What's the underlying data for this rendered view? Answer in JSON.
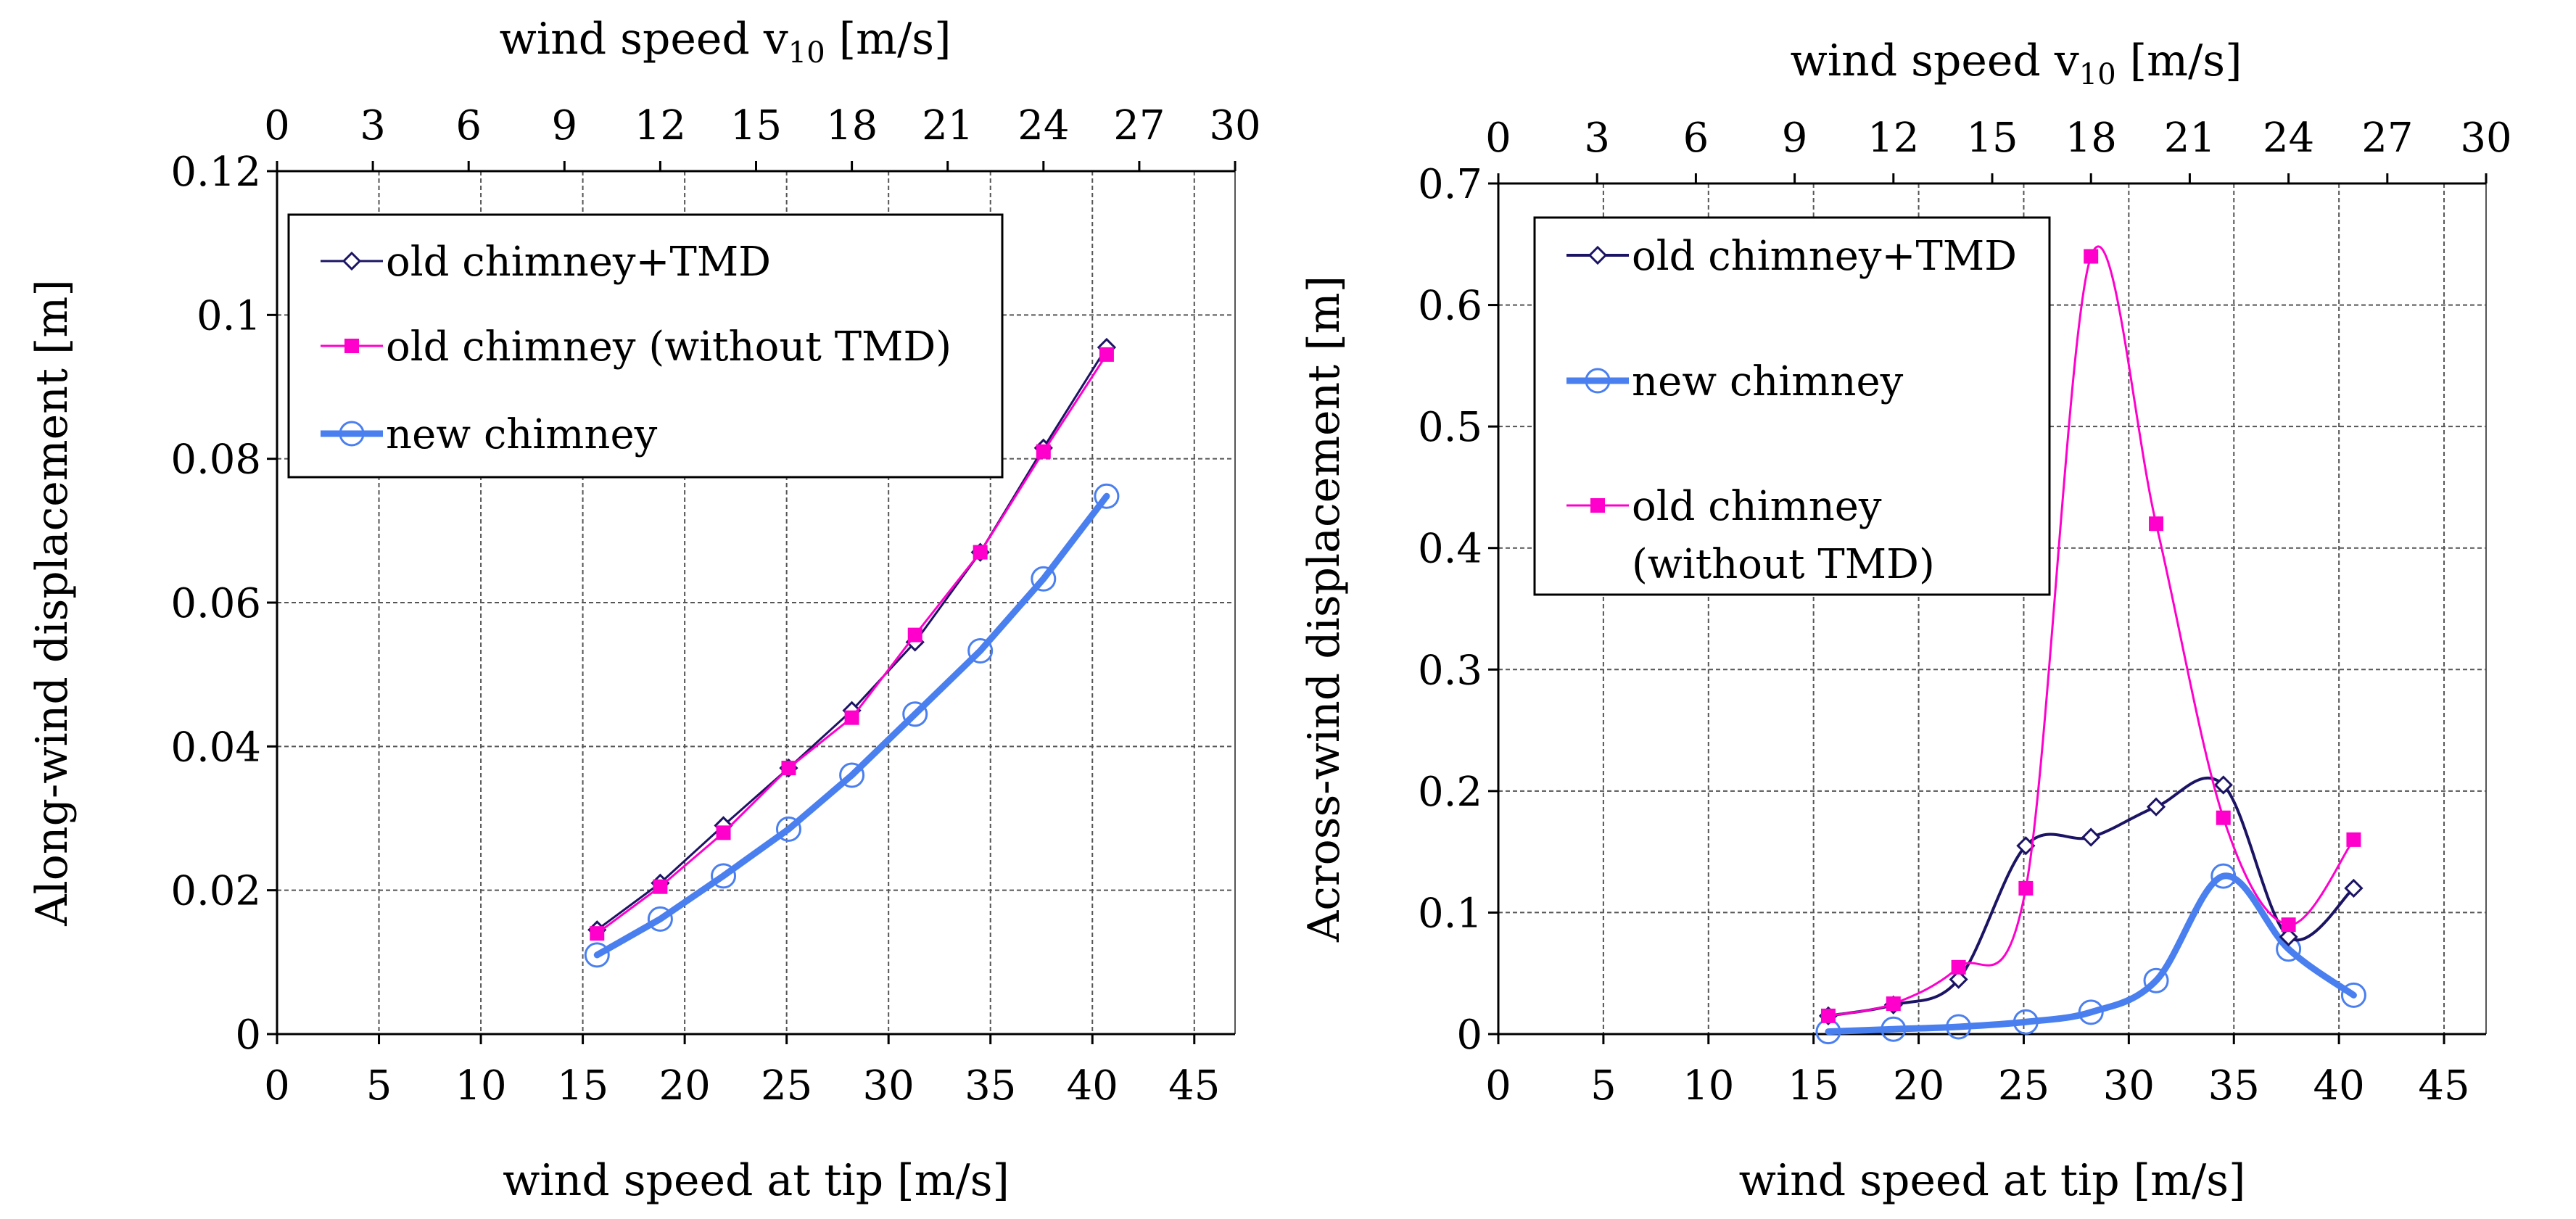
{
  "chart_data": [
    {
      "type": "line",
      "panel": "left",
      "xlabel": "wind speed at tip [m/s]",
      "ylabel": "Along-wind displacement [m]",
      "top_xlabel_main": "wind speed v",
      "top_xlabel_sub": "10",
      "top_xlabel_unit": "[m/s]",
      "xlim": [
        0,
        47
      ],
      "ylim": [
        0,
        0.12
      ],
      "xticks": [
        0,
        5,
        10,
        15,
        20,
        25,
        30,
        35,
        40,
        45
      ],
      "xtick_labels": [
        "0",
        "5",
        "10",
        "15",
        "20",
        "25",
        "30",
        "35",
        "40",
        "45"
      ],
      "yticks": [
        0,
        0.02,
        0.04,
        0.06,
        0.08,
        0.1,
        0.12
      ],
      "ytick_labels": [
        "0",
        "0.02",
        "0.04",
        "0.06",
        "0.08",
        "0.1",
        "0.12"
      ],
      "top_ticks": [
        0,
        3,
        6,
        9,
        12,
        15,
        18,
        21,
        24,
        27,
        30
      ],
      "top_tick_labels": [
        "0",
        "3",
        "6",
        "9",
        "12",
        "15",
        "18",
        "21",
        "24",
        "27",
        "30"
      ],
      "top_axis_factor": 1.5667,
      "grid": true,
      "legend": [
        {
          "series": 0,
          "label": "old chimney+TMD"
        },
        {
          "series": 1,
          "label": "old chimney (without TMD)"
        },
        {
          "series": 2,
          "label": "new chimney"
        }
      ],
      "series": [
        {
          "name": "old chimney+TMD",
          "color": "#1b1464",
          "marker": "diamond",
          "width": 3,
          "smooth": false,
          "x": [
            15.7,
            18.8,
            21.9,
            25.1,
            28.2,
            31.3,
            34.5,
            37.6,
            40.7
          ],
          "y": [
            0.0145,
            0.021,
            0.029,
            0.037,
            0.045,
            0.0545,
            0.067,
            0.0815,
            0.0955
          ]
        },
        {
          "name": "old chimney (without TMD)",
          "color": "#ff00cc",
          "marker": "square",
          "width": 3,
          "smooth": false,
          "x": [
            15.7,
            18.8,
            21.9,
            25.1,
            28.2,
            31.3,
            34.5,
            37.6,
            40.7
          ],
          "y": [
            0.014,
            0.0205,
            0.028,
            0.037,
            0.044,
            0.0555,
            0.067,
            0.081,
            0.0945
          ]
        },
        {
          "name": "new chimney",
          "color": "#4a7ff0",
          "marker": "circle",
          "width": 9,
          "smooth": false,
          "x": [
            15.7,
            18.8,
            21.9,
            25.1,
            28.2,
            31.3,
            34.5,
            37.6,
            40.7
          ],
          "y": [
            0.011,
            0.016,
            0.022,
            0.0285,
            0.036,
            0.0445,
            0.0533,
            0.0633,
            0.0748
          ]
        }
      ]
    },
    {
      "type": "line",
      "panel": "right",
      "xlabel": "wind speed at tip [m/s]",
      "ylabel": "Across-wind displacement [m]",
      "top_xlabel_main": "wind speed v",
      "top_xlabel_sub": "10",
      "top_xlabel_unit": "[m/s]",
      "xlim": [
        0,
        47
      ],
      "ylim": [
        0,
        0.7
      ],
      "xticks": [
        0,
        5,
        10,
        15,
        20,
        25,
        30,
        35,
        40,
        45
      ],
      "xtick_labels": [
        "0",
        "5",
        "10",
        "15",
        "20",
        "25",
        "30",
        "35",
        "40",
        "45"
      ],
      "yticks": [
        0,
        0.1,
        0.2,
        0.3,
        0.4,
        0.5,
        0.6,
        0.7
      ],
      "ytick_labels": [
        "0",
        "0.1",
        "0.2",
        "0.3",
        "0.4",
        "0.5",
        "0.6",
        "0.7"
      ],
      "top_ticks": [
        0,
        3,
        6,
        9,
        12,
        15,
        18,
        21,
        24,
        27,
        30
      ],
      "top_tick_labels": [
        "0",
        "3",
        "6",
        "9",
        "12",
        "15",
        "18",
        "21",
        "24",
        "27",
        "30"
      ],
      "top_axis_factor": 1.5667,
      "grid": true,
      "legend": [
        {
          "series": 0,
          "label": "old chimney+TMD"
        },
        {
          "series": 2,
          "label": "new chimney"
        },
        {
          "series": 1,
          "label": "old chimney",
          "label2": "(without TMD)"
        }
      ],
      "series": [
        {
          "name": "old chimney+TMD",
          "color": "#1b1464",
          "marker": "diamond",
          "width": 4,
          "smooth": true,
          "x": [
            15.7,
            18.8,
            21.9,
            25.1,
            28.2,
            31.3,
            34.5,
            37.6,
            40.7
          ],
          "y": [
            0.015,
            0.024,
            0.045,
            0.155,
            0.162,
            0.187,
            0.205,
            0.08,
            0.12
          ]
        },
        {
          "name": "old chimney (without TMD)",
          "color": "#ff00cc",
          "marker": "square",
          "width": 3,
          "smooth": true,
          "x": [
            15.7,
            18.8,
            21.9,
            25.1,
            28.2,
            31.3,
            34.5,
            37.6,
            40.7
          ],
          "y": [
            0.015,
            0.025,
            0.055,
            0.12,
            0.64,
            0.42,
            0.178,
            0.09,
            0.16
          ]
        },
        {
          "name": "new chimney",
          "color": "#4a7ff0",
          "marker": "circle",
          "width": 9,
          "smooth": true,
          "x": [
            15.7,
            18.8,
            21.9,
            25.1,
            28.2,
            31.3,
            34.5,
            37.6,
            40.7
          ],
          "y": [
            0.002,
            0.004,
            0.006,
            0.01,
            0.018,
            0.044,
            0.13,
            0.07,
            0.032
          ]
        }
      ]
    }
  ]
}
